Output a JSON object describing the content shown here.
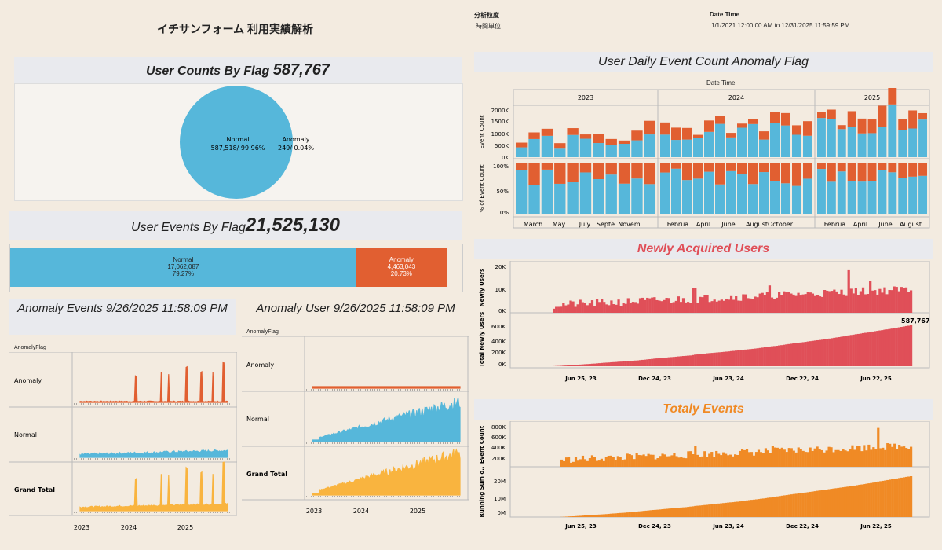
{
  "colors": {
    "blue": "#56b7da",
    "orange": "#e15f31",
    "yellow": "#f9b43f",
    "red": "#e04f58",
    "amber": "#f08a25",
    "bg": "#f3ebe0"
  },
  "header": {
    "title": "イチサンフォーム 利用実績解析",
    "granularity_label": "分析粒度",
    "granularity_value": "時間単位",
    "date_label": "Date Time",
    "date_value": "1/1/2021 12:00:00 AM to 12/31/2025 11:59:59 PM"
  },
  "user_counts": {
    "title": "User Counts By Flag",
    "total": "587,767",
    "normal_label": "Normal",
    "normal_value": "587,518/ 99.96%",
    "anomaly_label": "Anomaly",
    "anomaly_value": "249/ 0.04%"
  },
  "user_events": {
    "title": "User Events By Flag",
    "total": "21,525,130",
    "normal_label": "Normal",
    "normal_count": "17,062,087",
    "normal_pct": "79.27%",
    "anomaly_label": "Anomaly",
    "anomaly_count": "4,463,043",
    "anomaly_pct": "20.73%",
    "normal_fraction": 0.7927
  },
  "anomaly_events": {
    "title": "Anomaly Events 9/26/2025 11:58:09 PM",
    "column_header": "AnomalyFlag",
    "rows": [
      "Anomaly",
      "Normal",
      "Grand Total"
    ],
    "x_ticks": [
      "2023",
      "2024",
      "2025"
    ]
  },
  "anomaly_user": {
    "title": "Anomaly User 9/26/2025 11:58:09 PM",
    "column_header": "AnomalyFlag",
    "rows": [
      "Anomaly",
      "Normal",
      "Grand Total"
    ],
    "x_ticks": [
      "2023",
      "2024",
      "2025"
    ]
  },
  "daily_anomaly": {
    "title": "User Daily Event Count Anomaly Flag",
    "axis_title": "Date Time",
    "years": [
      "2023",
      "2024",
      "2025"
    ],
    "y_label_top": "Event Count",
    "y_ticks_top": [
      "2000K",
      "1500K",
      "1000K",
      "500K",
      "0K"
    ],
    "y_label_bottom": "% of Event Count",
    "y_ticks_bottom": [
      "100%",
      "50%",
      "0%"
    ],
    "month_ticks": [
      "March",
      "May",
      "July",
      "Septe..",
      "Novem..",
      "Februa..",
      "April",
      "June",
      "August",
      "October",
      "Februa..",
      "April",
      "June",
      "August"
    ]
  },
  "newly_acquired": {
    "title": "Newly Acquired Users",
    "y_label_top": "Newly Users",
    "y_ticks_top": [
      "20K",
      "10K",
      "0K"
    ],
    "y_label_bottom": "Total Newly Users",
    "y_ticks_bottom": [
      "600K",
      "400K",
      "200K",
      "0K"
    ],
    "end_label": "587,767",
    "x_ticks": [
      "Jun 25, 23",
      "Dec 24, 23",
      "Jun 23, 24",
      "Dec 22, 24",
      "Jun 22, 25"
    ]
  },
  "total_events": {
    "title": "Totaly Events",
    "y_label_top": "Event Count",
    "y_ticks_top": [
      "800K",
      "600K",
      "400K",
      "200K"
    ],
    "y_label_bottom": "Running Sum o..",
    "y_ticks_bottom": [
      "20M",
      "10M",
      "0M"
    ],
    "x_ticks": [
      "Jun 25, 23",
      "Dec 24, 23",
      "Jun 23, 24",
      "Dec 22, 24",
      "Jun 22, 25"
    ]
  }
}
